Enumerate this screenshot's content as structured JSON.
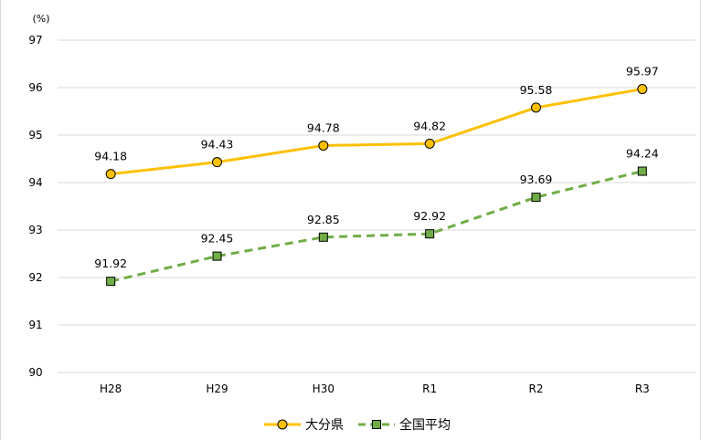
{
  "chart_data": {
    "type": "line",
    "unit_label": "(%)",
    "categories": [
      "H28",
      "H29",
      "H30",
      "R1",
      "R2",
      "R3"
    ],
    "ylim": [
      90,
      97
    ],
    "yticks": [
      90,
      91,
      92,
      93,
      94,
      95,
      96,
      97
    ],
    "grid": true,
    "legend_position": "bottom",
    "series": [
      {
        "name": "大分県",
        "values": [
          94.18,
          94.43,
          94.78,
          94.82,
          95.58,
          95.97
        ],
        "labels": [
          "94.18",
          "94.43",
          "94.78",
          "94.82",
          "95.58",
          "95.97"
        ],
        "color": "#FFC000",
        "line_style": "solid",
        "marker": "circle"
      },
      {
        "name": "全国平均",
        "values": [
          91.92,
          92.45,
          92.85,
          92.92,
          93.69,
          94.24
        ],
        "labels": [
          "91.92",
          "92.45",
          "92.85",
          "92.92",
          "93.69",
          "94.24"
        ],
        "color": "#70AD47",
        "line_style": "dashed",
        "marker": "square"
      }
    ]
  }
}
